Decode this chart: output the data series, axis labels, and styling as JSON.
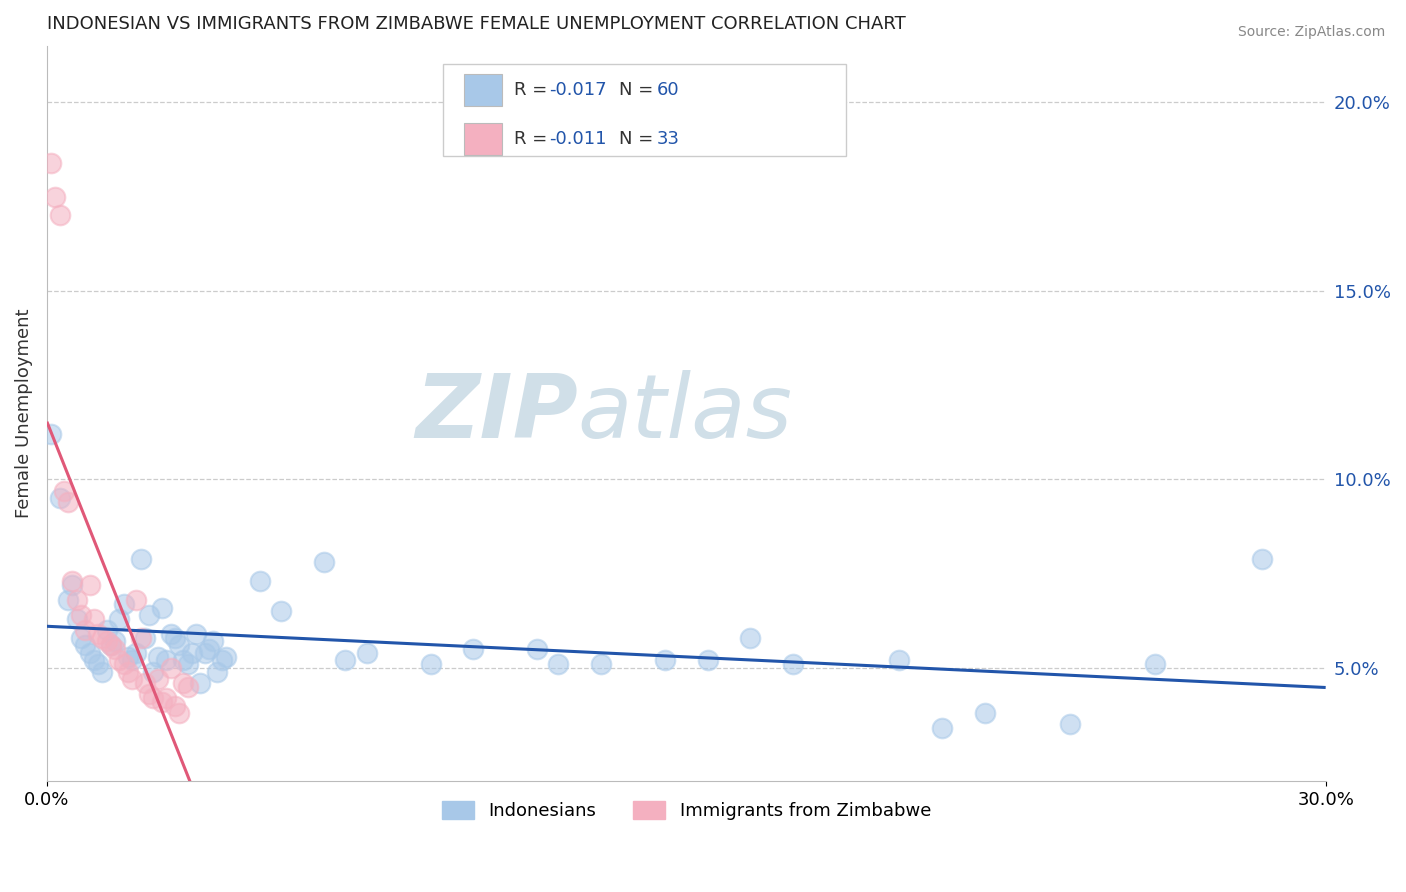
{
  "title": "INDONESIAN VS IMMIGRANTS FROM ZIMBABWE FEMALE UNEMPLOYMENT CORRELATION CHART",
  "source": "Source: ZipAtlas.com",
  "ylabel": "Female Unemployment",
  "xmin": 0.0,
  "xmax": 0.3,
  "ymin": 0.02,
  "ymax": 0.215,
  "yticks_right": [
    0.05,
    0.1,
    0.15,
    0.2
  ],
  "bottom_legend": [
    "Indonesians",
    "Immigrants from Zimbabwe"
  ],
  "indonesian_color": "#a8c8e8",
  "zimbabwe_color": "#f4b0c0",
  "indonesian_line_color": "#2255aa",
  "zimbabwe_line_color": "#e05878",
  "watermark_zip": "ZIP",
  "watermark_atlas": "atlas",
  "watermark_color": "#d0dfe8",
  "indonesian_points": [
    [
      0.001,
      0.112
    ],
    [
      0.003,
      0.095
    ],
    [
      0.005,
      0.068
    ],
    [
      0.006,
      0.072
    ],
    [
      0.007,
      0.063
    ],
    [
      0.008,
      0.058
    ],
    [
      0.009,
      0.056
    ],
    [
      0.01,
      0.054
    ],
    [
      0.011,
      0.052
    ],
    [
      0.012,
      0.051
    ],
    [
      0.013,
      0.049
    ],
    [
      0.014,
      0.06
    ],
    [
      0.015,
      0.056
    ],
    [
      0.016,
      0.057
    ],
    [
      0.017,
      0.063
    ],
    [
      0.018,
      0.067
    ],
    [
      0.019,
      0.053
    ],
    [
      0.02,
      0.052
    ],
    [
      0.021,
      0.054
    ],
    [
      0.022,
      0.079
    ],
    [
      0.023,
      0.058
    ],
    [
      0.024,
      0.064
    ],
    [
      0.025,
      0.049
    ],
    [
      0.026,
      0.053
    ],
    [
      0.027,
      0.066
    ],
    [
      0.028,
      0.052
    ],
    [
      0.029,
      0.059
    ],
    [
      0.03,
      0.058
    ],
    [
      0.031,
      0.056
    ],
    [
      0.032,
      0.052
    ],
    [
      0.033,
      0.051
    ],
    [
      0.034,
      0.054
    ],
    [
      0.035,
      0.059
    ],
    [
      0.036,
      0.046
    ],
    [
      0.037,
      0.054
    ],
    [
      0.038,
      0.055
    ],
    [
      0.039,
      0.057
    ],
    [
      0.04,
      0.049
    ],
    [
      0.041,
      0.052
    ],
    [
      0.042,
      0.053
    ],
    [
      0.05,
      0.073
    ],
    [
      0.055,
      0.065
    ],
    [
      0.065,
      0.078
    ],
    [
      0.07,
      0.052
    ],
    [
      0.075,
      0.054
    ],
    [
      0.09,
      0.051
    ],
    [
      0.1,
      0.055
    ],
    [
      0.115,
      0.055
    ],
    [
      0.12,
      0.051
    ],
    [
      0.13,
      0.051
    ],
    [
      0.145,
      0.052
    ],
    [
      0.155,
      0.052
    ],
    [
      0.165,
      0.058
    ],
    [
      0.175,
      0.051
    ],
    [
      0.2,
      0.052
    ],
    [
      0.21,
      0.034
    ],
    [
      0.22,
      0.038
    ],
    [
      0.24,
      0.035
    ],
    [
      0.26,
      0.051
    ],
    [
      0.285,
      0.079
    ]
  ],
  "zimbabwe_points": [
    [
      0.001,
      0.184
    ],
    [
      0.002,
      0.175
    ],
    [
      0.003,
      0.17
    ],
    [
      0.004,
      0.097
    ],
    [
      0.005,
      0.094
    ],
    [
      0.006,
      0.073
    ],
    [
      0.007,
      0.068
    ],
    [
      0.008,
      0.064
    ],
    [
      0.009,
      0.06
    ],
    [
      0.01,
      0.072
    ],
    [
      0.011,
      0.063
    ],
    [
      0.012,
      0.059
    ],
    [
      0.013,
      0.058
    ],
    [
      0.014,
      0.057
    ],
    [
      0.015,
      0.056
    ],
    [
      0.016,
      0.055
    ],
    [
      0.017,
      0.052
    ],
    [
      0.018,
      0.051
    ],
    [
      0.019,
      0.049
    ],
    [
      0.02,
      0.047
    ],
    [
      0.021,
      0.068
    ],
    [
      0.022,
      0.058
    ],
    [
      0.023,
      0.046
    ],
    [
      0.024,
      0.043
    ],
    [
      0.025,
      0.042
    ],
    [
      0.026,
      0.047
    ],
    [
      0.027,
      0.041
    ],
    [
      0.028,
      0.042
    ],
    [
      0.029,
      0.05
    ],
    [
      0.03,
      0.04
    ],
    [
      0.031,
      0.038
    ],
    [
      0.032,
      0.046
    ],
    [
      0.033,
      0.045
    ]
  ],
  "legend_r_color": "#2255aa",
  "legend_n_color": "#2255aa",
  "legend_text_color": "#333333"
}
